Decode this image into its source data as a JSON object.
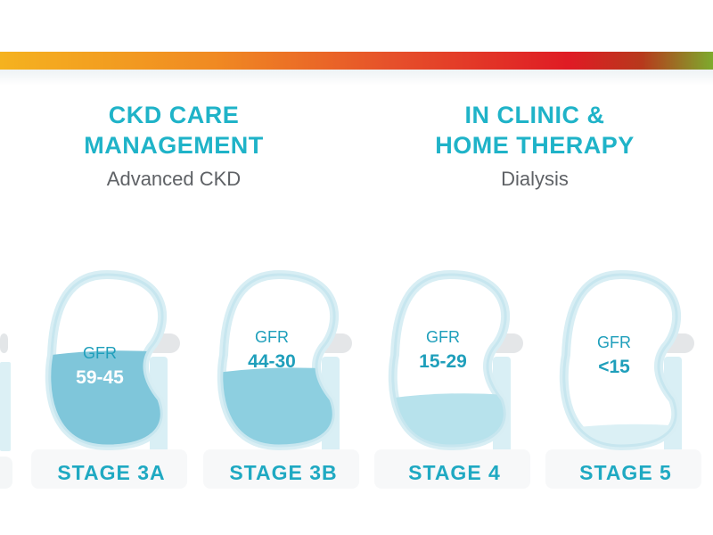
{
  "header": {
    "left": {
      "title_line1": "CKD CARE",
      "title_line2": "MANAGEMENT",
      "subtitle": "Advanced CKD"
    },
    "right": {
      "title_line1": "IN CLINIC &",
      "title_line2": "HOME THERAPY",
      "subtitle": "Dialysis"
    }
  },
  "colors": {
    "heading": "#1fb3c8",
    "subtitle": "#5f6266",
    "kidney_outline": "#d8eef4",
    "fill_3a": "#7fc6da",
    "fill_3b": "#8dcfe0",
    "fill_4": "#b7e2ec",
    "fill_5": "#dbf0f5"
  },
  "stages": [
    {
      "label": "STAGE 3A",
      "gfr_label": "GFR",
      "gfr_range": "59-45",
      "fill_level": 0.55
    },
    {
      "label": "STAGE 3B",
      "gfr_label": "GFR",
      "gfr_range": "44-30",
      "fill_level": 0.45
    },
    {
      "label": "STAGE 4",
      "gfr_label": "GFR",
      "gfr_range": "15-29",
      "fill_level": 0.3
    },
    {
      "label": "STAGE 5",
      "gfr_label": "GFR",
      "gfr_range": "<15",
      "fill_level": 0.12
    }
  ]
}
